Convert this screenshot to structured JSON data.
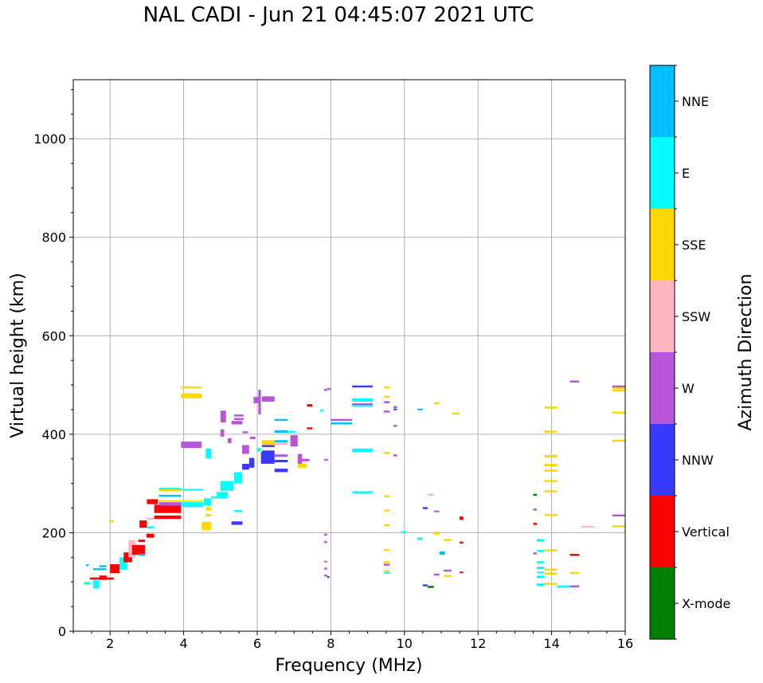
{
  "chart_data": {
    "type": "scatter",
    "title": "NAL CADI - Jun 21 04:45:07 2021 UTC",
    "xlabel": "Frequency (MHz)",
    "ylabel": "Virtual height (km)",
    "xlim": [
      1,
      16
    ],
    "ylim": [
      0,
      1120
    ],
    "xticks": [
      2,
      4,
      6,
      8,
      10,
      12,
      14,
      16
    ],
    "yticks": [
      0,
      200,
      400,
      600,
      800,
      1000
    ],
    "grid": true,
    "colorbar": {
      "label": "Azimuth Direction",
      "categories": [
        "X-mode",
        "Vertical",
        "NNW",
        "W",
        "SSW",
        "SSE",
        "E",
        "NNE"
      ],
      "colors": [
        "#008000",
        "#ff0000",
        "#3a3aff",
        "#b856d8",
        "#ffb6c1",
        "#ffd700",
        "#00ffff",
        "#00bfff"
      ]
    },
    "segment_format": [
      "freq_start_MHz",
      "freq_end_MHz",
      "height_low_km",
      "height_high_km",
      "direction_index"
    ],
    "segments": [
      [
        1.54,
        1.71,
        87,
        104,
        6
      ],
      [
        1.71,
        1.91,
        104,
        113,
        1
      ],
      [
        1.45,
        2.1,
        105,
        109,
        1
      ],
      [
        1.54,
        1.9,
        124,
        128,
        7
      ],
      [
        1.71,
        1.9,
        130,
        134,
        7
      ],
      [
        1.3,
        1.45,
        95,
        100,
        6
      ],
      [
        1.35,
        1.42,
        132,
        136,
        7
      ],
      [
        2.0,
        2.26,
        118,
        136,
        1
      ],
      [
        2.26,
        2.47,
        125,
        150,
        6
      ],
      [
        2.37,
        2.6,
        140,
        160,
        1
      ],
      [
        2.5,
        2.7,
        150,
        185,
        4
      ],
      [
        2.6,
        2.95,
        155,
        175,
        1
      ],
      [
        2.77,
        2.95,
        153,
        157,
        7
      ],
      [
        2.77,
        2.95,
        181,
        186,
        1
      ],
      [
        2.99,
        3.2,
        190,
        198,
        1
      ],
      [
        2.99,
        3.2,
        209,
        213,
        6
      ],
      [
        2.8,
        3.0,
        210,
        225,
        1
      ],
      [
        2.99,
        3.2,
        226,
        230,
        4
      ],
      [
        3.2,
        3.93,
        228,
        235,
        1
      ],
      [
        3.2,
        3.93,
        240,
        248,
        1
      ],
      [
        3.2,
        3.93,
        246,
        257,
        1
      ],
      [
        3.33,
        3.93,
        255,
        262,
        3
      ],
      [
        3.93,
        4.53,
        252,
        262,
        6
      ],
      [
        3.33,
        4.53,
        263,
        266,
        5
      ],
      [
        3.33,
        3.93,
        273,
        277,
        7
      ],
      [
        3.33,
        3.93,
        287,
        291,
        6
      ],
      [
        3.33,
        3.93,
        284,
        288,
        5
      ],
      [
        3.93,
        4.53,
        286,
        289,
        6
      ],
      [
        3.0,
        3.3,
        258,
        268,
        1
      ],
      [
        1.97,
        2.1,
        221,
        225,
        5
      ],
      [
        4.49,
        4.75,
        205,
        222,
        5
      ],
      [
        4.6,
        4.75,
        245,
        252,
        5
      ],
      [
        4.6,
        4.75,
        233,
        238,
        5
      ],
      [
        4.55,
        4.75,
        255,
        270,
        6
      ],
      [
        4.75,
        4.9,
        270,
        274,
        6
      ],
      [
        4.9,
        5.2,
        270,
        283,
        6
      ],
      [
        5.0,
        5.35,
        285,
        305,
        6
      ],
      [
        5.37,
        5.59,
        300,
        323,
        6
      ],
      [
        5.3,
        5.6,
        216,
        223,
        2
      ],
      [
        5.37,
        5.59,
        242,
        246,
        6
      ],
      [
        3.93,
        4.49,
        473,
        483,
        5
      ],
      [
        3.93,
        4.49,
        493,
        497,
        5
      ],
      [
        3.93,
        4.49,
        372,
        385,
        3
      ],
      [
        4.6,
        4.75,
        351,
        371,
        6
      ],
      [
        5.0,
        5.15,
        424,
        448,
        3
      ],
      [
        5.37,
        5.63,
        436,
        440,
        3
      ],
      [
        5.37,
        5.63,
        429,
        433,
        3
      ],
      [
        5.3,
        5.6,
        420,
        427,
        3
      ],
      [
        5.59,
        5.78,
        360,
        378,
        3
      ],
      [
        5.59,
        5.78,
        328,
        340,
        2
      ],
      [
        5.78,
        5.92,
        332,
        352,
        2
      ],
      [
        5.9,
        6.05,
        463,
        476,
        3
      ],
      [
        6.13,
        6.47,
        466,
        477,
        3
      ],
      [
        6.03,
        6.1,
        440,
        490,
        3
      ],
      [
        6.1,
        6.47,
        340,
        364,
        2
      ],
      [
        6.47,
        6.83,
        343,
        348,
        2
      ],
      [
        6.47,
        6.83,
        323,
        330,
        2
      ],
      [
        6.13,
        6.47,
        363,
        367,
        2
      ],
      [
        6.13,
        6.47,
        374,
        378,
        2
      ],
      [
        6.13,
        6.47,
        378,
        388,
        5
      ],
      [
        6.47,
        6.83,
        403,
        408,
        7
      ],
      [
        6.83,
        7.05,
        403,
        407,
        6
      ],
      [
        6.47,
        6.83,
        378,
        382,
        4
      ],
      [
        6.47,
        6.83,
        383,
        388,
        7
      ],
      [
        6.47,
        6.83,
        354,
        359,
        3
      ],
      [
        6.9,
        7.1,
        375,
        398,
        3
      ],
      [
        7.1,
        7.42,
        345,
        350,
        3
      ],
      [
        7.1,
        7.22,
        340,
        360,
        3
      ],
      [
        6.47,
        6.83,
        427,
        431,
        7
      ],
      [
        7.7,
        7.8,
        446,
        450,
        6
      ],
      [
        7.35,
        7.5,
        456,
        461,
        1
      ],
      [
        7.35,
        7.5,
        410,
        414,
        1
      ],
      [
        7.9,
        8.0,
        490,
        494,
        3
      ],
      [
        7.82,
        7.92,
        346,
        350,
        3
      ],
      [
        5.2,
        5.3,
        382,
        392,
        3
      ],
      [
        5.0,
        5.1,
        395,
        410,
        3
      ],
      [
        5.6,
        5.75,
        402,
        406,
        3
      ],
      [
        5.8,
        5.95,
        390,
        395,
        3
      ],
      [
        6.0,
        6.1,
        365,
        372,
        6
      ],
      [
        7.1,
        7.35,
        332,
        340,
        5
      ],
      [
        8.58,
        9.14,
        495,
        499,
        2
      ],
      [
        8.58,
        9.14,
        466,
        473,
        6
      ],
      [
        8.58,
        9.14,
        459,
        463,
        3
      ],
      [
        8.58,
        9.14,
        456,
        459,
        6
      ],
      [
        8.0,
        8.58,
        427,
        431,
        3
      ],
      [
        8.0,
        8.58,
        420,
        424,
        7
      ],
      [
        8.58,
        9.14,
        364,
        371,
        6
      ],
      [
        8.58,
        9.14,
        280,
        284,
        6
      ],
      [
        9.44,
        9.6,
        493,
        497,
        5
      ],
      [
        9.44,
        9.6,
        474,
        478,
        5
      ],
      [
        9.44,
        9.6,
        360,
        364,
        5
      ],
      [
        9.44,
        9.6,
        272,
        276,
        5
      ],
      [
        9.44,
        9.6,
        243,
        247,
        5
      ],
      [
        9.44,
        9.6,
        213,
        217,
        5
      ],
      [
        9.44,
        9.6,
        163,
        167,
        5
      ],
      [
        9.44,
        9.6,
        138,
        142,
        5
      ],
      [
        9.44,
        9.6,
        120,
        124,
        5
      ],
      [
        9.44,
        9.6,
        463,
        467,
        3
      ],
      [
        9.44,
        9.6,
        444,
        448,
        3
      ],
      [
        9.44,
        9.6,
        133,
        137,
        3
      ],
      [
        9.44,
        9.6,
        117,
        120,
        6
      ],
      [
        9.7,
        9.8,
        453,
        457,
        3
      ],
      [
        9.7,
        9.8,
        415,
        419,
        3
      ],
      [
        9.7,
        9.8,
        355,
        359,
        3
      ],
      [
        9.7,
        9.8,
        449,
        452,
        2
      ],
      [
        10.35,
        10.5,
        449,
        452,
        7
      ],
      [
        10.8,
        10.95,
        461,
        465,
        5
      ],
      [
        11.3,
        11.5,
        440,
        444,
        5
      ],
      [
        10.63,
        10.8,
        275,
        279,
        4
      ],
      [
        10.5,
        10.63,
        248,
        252,
        2
      ],
      [
        10.8,
        10.95,
        242,
        245,
        3
      ],
      [
        11.5,
        11.6,
        226,
        233,
        1
      ],
      [
        9.9,
        10.05,
        201,
        203,
        6
      ],
      [
        10.8,
        10.95,
        196,
        202,
        5
      ],
      [
        10.35,
        10.5,
        186,
        190,
        6
      ],
      [
        11.07,
        11.28,
        183,
        187,
        5
      ],
      [
        11.5,
        11.6,
        178,
        182,
        1
      ],
      [
        10.95,
        11.1,
        155,
        162,
        7
      ],
      [
        11.07,
        11.28,
        121,
        125,
        3
      ],
      [
        11.07,
        11.28,
        110,
        114,
        5
      ],
      [
        10.8,
        10.95,
        113,
        117,
        3
      ],
      [
        11.5,
        11.6,
        119,
        121,
        1
      ],
      [
        10.5,
        10.63,
        91,
        95,
        2
      ],
      [
        10.63,
        10.8,
        88,
        92,
        0
      ],
      [
        7.82,
        7.9,
        488,
        492,
        3
      ],
      [
        7.82,
        7.9,
        194,
        198,
        3
      ],
      [
        7.82,
        7.9,
        179,
        183,
        3
      ],
      [
        7.82,
        7.9,
        141,
        143,
        3
      ],
      [
        7.82,
        7.9,
        125,
        129,
        3
      ],
      [
        7.82,
        7.9,
        111,
        115,
        3
      ],
      [
        7.9,
        7.96,
        108,
        112,
        2
      ],
      [
        13.8,
        14.15,
        452,
        456,
        5
      ],
      [
        13.8,
        14.15,
        403,
        407,
        5
      ],
      [
        13.8,
        14.15,
        353,
        358,
        5
      ],
      [
        13.8,
        14.15,
        335,
        340,
        5
      ],
      [
        13.8,
        14.15,
        324,
        328,
        5
      ],
      [
        13.8,
        14.15,
        303,
        307,
        5
      ],
      [
        13.8,
        14.15,
        282,
        286,
        5
      ],
      [
        13.8,
        14.15,
        234,
        238,
        5
      ],
      [
        13.8,
        14.15,
        162,
        166,
        5
      ],
      [
        13.8,
        14.15,
        123,
        127,
        5
      ],
      [
        13.8,
        14.15,
        115,
        119,
        5
      ],
      [
        13.8,
        14.15,
        94,
        98,
        5
      ],
      [
        13.5,
        13.6,
        275,
        279,
        0
      ],
      [
        13.5,
        13.6,
        245,
        249,
        3
      ],
      [
        13.5,
        13.6,
        216,
        220,
        1
      ],
      [
        13.5,
        13.6,
        156,
        160,
        3
      ],
      [
        13.6,
        13.8,
        182,
        187,
        6
      ],
      [
        13.6,
        13.8,
        161,
        165,
        6
      ],
      [
        13.6,
        13.8,
        138,
        142,
        6
      ],
      [
        13.6,
        13.8,
        126,
        131,
        6
      ],
      [
        13.6,
        13.8,
        119,
        121,
        6
      ],
      [
        13.6,
        13.8,
        108,
        113,
        6
      ],
      [
        13.6,
        13.8,
        92,
        97,
        6
      ],
      [
        14.15,
        14.5,
        89,
        93,
        6
      ],
      [
        14.5,
        14.75,
        89,
        93,
        3
      ],
      [
        14.5,
        14.75,
        153,
        157,
        1
      ],
      [
        14.5,
        14.75,
        116,
        120,
        5
      ],
      [
        14.8,
        15.15,
        211,
        214,
        4
      ],
      [
        14.5,
        14.75,
        505,
        509,
        3
      ],
      [
        15.65,
        16,
        495,
        499,
        3
      ],
      [
        15.65,
        16,
        492,
        495,
        5
      ],
      [
        15.65,
        16,
        487,
        491,
        5
      ],
      [
        15.65,
        16,
        442,
        446,
        5
      ],
      [
        15.65,
        16,
        385,
        389,
        5
      ],
      [
        15.65,
        16,
        233,
        237,
        3
      ],
      [
        15.65,
        16,
        211,
        215,
        5
      ]
    ]
  }
}
